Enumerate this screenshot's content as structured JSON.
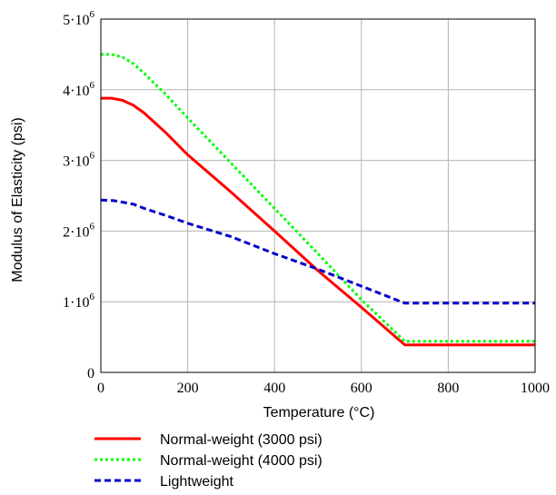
{
  "chart_data": {
    "type": "line",
    "title": "",
    "xlabel": "Temperature (°C)",
    "ylabel": "Modulus of Elasticity (psi)",
    "xlim": [
      0,
      1000
    ],
    "ylim": [
      0,
      5000000
    ],
    "x_ticks": [
      "0",
      "200",
      "400",
      "600",
      "800",
      "1000"
    ],
    "y_ticks": [
      {
        "mantissa": "0",
        "exponent": ""
      },
      {
        "mantissa": "1·10",
        "exponent": "6"
      },
      {
        "mantissa": "2·10",
        "exponent": "6"
      },
      {
        "mantissa": "3·10",
        "exponent": "6"
      },
      {
        "mantissa": "4·10",
        "exponent": "6"
      },
      {
        "mantissa": "5·10",
        "exponent": "6"
      }
    ],
    "grid": true,
    "legend_position": "bottom-left",
    "series": [
      {
        "name": "Normal-weight (3000 psi)",
        "color": "#ff0000",
        "style": "solid",
        "x": [
          0,
          25,
          50,
          75,
          100,
          150,
          200,
          300,
          400,
          500,
          600,
          700,
          1000
        ],
        "y": [
          3880000,
          3880000,
          3850000,
          3780000,
          3670000,
          3390000,
          3080000,
          2550000,
          2000000,
          1440000,
          920000,
          390000,
          390000
        ]
      },
      {
        "name": "Normal-weight (4000 psi)",
        "color": "#00ff00",
        "style": "dotted",
        "x": [
          0,
          25,
          50,
          75,
          100,
          150,
          200,
          300,
          400,
          500,
          600,
          700,
          1000
        ],
        "y": [
          4500000,
          4500000,
          4460000,
          4370000,
          4230000,
          3930000,
          3600000,
          2960000,
          2320000,
          1680000,
          1030000,
          440000,
          440000
        ]
      },
      {
        "name": "Lightweight",
        "color": "#0000cc",
        "style": "dashed",
        "x": [
          0,
          30,
          75,
          100,
          150,
          200,
          300,
          400,
          500,
          600,
          650,
          700,
          1000
        ],
        "y": [
          2440000,
          2430000,
          2380000,
          2320000,
          2220000,
          2110000,
          1920000,
          1680000,
          1460000,
          1220000,
          1100000,
          980000,
          980000
        ]
      }
    ]
  }
}
